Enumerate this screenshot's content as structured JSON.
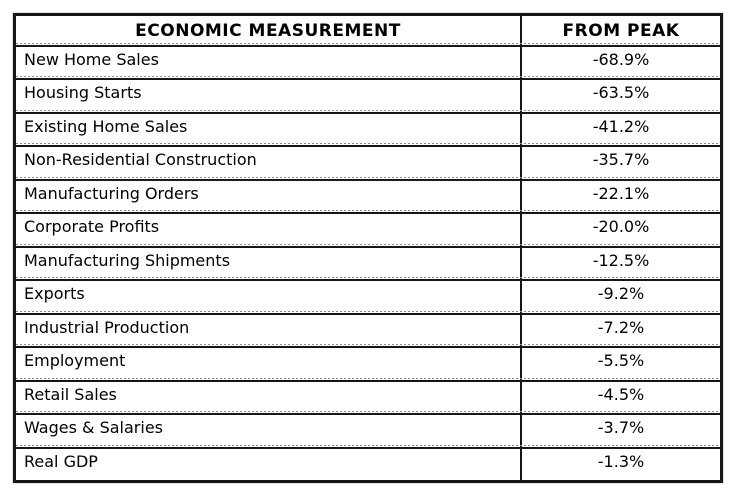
{
  "table": {
    "headers": {
      "measurement": "ECONOMIC MEASUREMENT",
      "from_peak": "FROM PEAK"
    },
    "rows": [
      {
        "label": "New Home Sales",
        "value": "-68.9%"
      },
      {
        "label": "Housing Starts",
        "value": "-63.5%"
      },
      {
        "label": "Existing Home Sales",
        "value": "-41.2%"
      },
      {
        "label": "Non-Residential Construction",
        "value": "-35.7%"
      },
      {
        "label": "Manufacturing Orders",
        "value": "-22.1%"
      },
      {
        "label": "Corporate Profits",
        "value": "-20.0%"
      },
      {
        "label": "Manufacturing Shipments",
        "value": "-12.5%"
      },
      {
        "label": "Exports",
        "value": "-9.2%"
      },
      {
        "label": "Industrial Production",
        "value": "-7.2%"
      },
      {
        "label": "Employment",
        "value": "-5.5%"
      },
      {
        "label": "Retail Sales",
        "value": "-4.5%"
      },
      {
        "label": "Wages & Salaries",
        "value": "-3.7%"
      },
      {
        "label": "Real GDP",
        "value": "-1.3%"
      }
    ],
    "colors": {
      "border": "#161616",
      "dotted_rule": "#8f8f8f",
      "text": "#000000",
      "background": "#ffffff"
    }
  },
  "chart_data": {
    "type": "table",
    "title": "",
    "columns": [
      "ECONOMIC MEASUREMENT",
      "FROM PEAK"
    ],
    "categories": [
      "New Home Sales",
      "Housing Starts",
      "Existing Home Sales",
      "Non-Residential Construction",
      "Manufacturing Orders",
      "Corporate Profits",
      "Manufacturing Shipments",
      "Exports",
      "Industrial Production",
      "Employment",
      "Retail Sales",
      "Wages & Salaries",
      "Real GDP"
    ],
    "values": [
      -68.9,
      -63.5,
      -41.2,
      -35.7,
      -22.1,
      -20.0,
      -12.5,
      -9.2,
      -7.2,
      -5.5,
      -4.5,
      -3.7,
      -1.3
    ],
    "value_format": "percent",
    "layout": "single two-column bordered table, labels left-aligned, values centered"
  }
}
